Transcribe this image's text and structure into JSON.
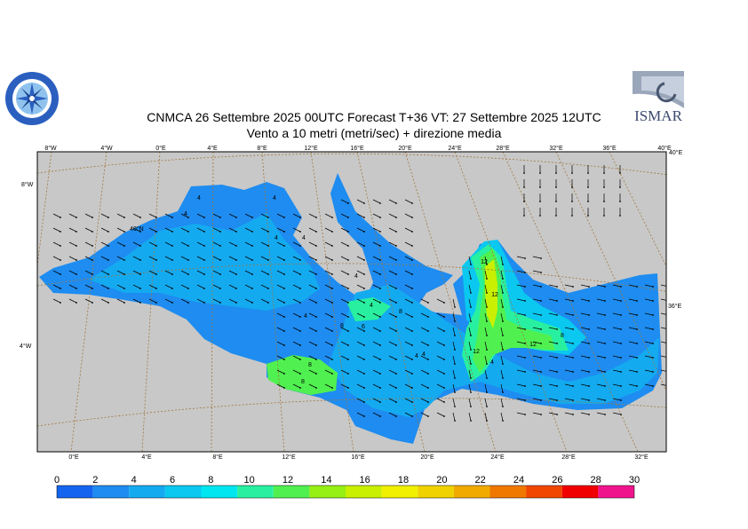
{
  "header": {
    "line1": "CNMCA 26 Settembre 2025 00UTC Forecast T+36 VT: 27 Settembre 2025 12UTC",
    "line2": "Vento a 10 metri (metri/sec) + direzione media"
  },
  "logos": {
    "left": {
      "icon": "cnmca-emblem-icon"
    },
    "right": {
      "icon": "ismar-logo-icon",
      "text": "ISMAR"
    }
  },
  "map": {
    "top_ticks": [
      "8°W",
      "4°W",
      "0°E",
      "4°E",
      "8°E",
      "12°E",
      "16°E",
      "20°E",
      "24°E",
      "28°E",
      "32°E",
      "36°E",
      "40°E"
    ],
    "bottom_ticks": [
      "0°E",
      "4°E",
      "8°E",
      "12°E",
      "16°E",
      "20°E",
      "24°E",
      "28°E",
      "32°E"
    ],
    "left_ticks": [
      "8°W",
      "40°N",
      "4°W"
    ],
    "right_ticks": [
      "40°E",
      "36°E"
    ],
    "contour_labels": [
      "4",
      "4",
      "4",
      "4",
      "4",
      "4",
      "4",
      "4",
      "4",
      "4",
      "4",
      "6",
      "8",
      "8",
      "8",
      "8",
      "8",
      "12",
      "12",
      "12",
      "12"
    ],
    "colors": {
      "land": "#c8c8c8",
      "grid": "#a07840"
    }
  },
  "colorbar": {
    "ticks": [
      "0",
      "2",
      "4",
      "6",
      "8",
      "10",
      "12",
      "14",
      "16",
      "18",
      "20",
      "22",
      "24",
      "26",
      "28",
      "30"
    ],
    "colors": [
      "#1464f0",
      "#1e8cf0",
      "#14aaf0",
      "#0ac8f0",
      "#00e6f0",
      "#28f0a0",
      "#50f050",
      "#96f014",
      "#c8f000",
      "#f0f000",
      "#f0d200",
      "#f0aa00",
      "#f07800",
      "#f04600",
      "#f00000",
      "#f0148c"
    ]
  }
}
